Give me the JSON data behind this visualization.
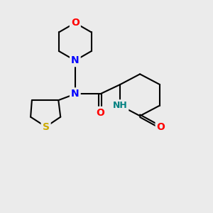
{
  "background_color": "#ebebeb",
  "bond_color": "#000000",
  "atom_colors": {
    "O": "#ff0000",
    "N": "#0000ff",
    "S": "#ccaa00",
    "NH": "#008080"
  }
}
